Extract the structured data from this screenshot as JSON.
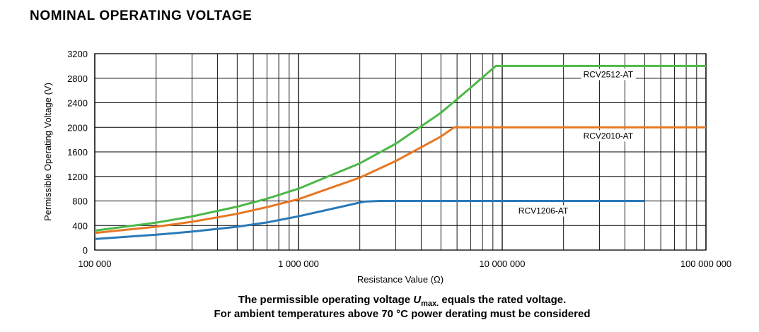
{
  "title": "NOMINAL OPERATING VOLTAGE",
  "caption": {
    "line1_pre": "The permissible operating voltage ",
    "line1_symbol": "U",
    "line1_sub": "max.",
    "line1_post": " equals the rated voltage.",
    "line2": "For ambient temperatures above 70 °C power derating must be considered"
  },
  "colors": {
    "RCV2512-AT": "#4cb848",
    "RCV2010-AT": "#e87722",
    "RCV1206-AT": "#2a7ab8",
    "grid": "#000000"
  },
  "chart_data": {
    "type": "line",
    "title": "NOMINAL OPERATING VOLTAGE",
    "xlabel": "Resistance Value (Ω)",
    "ylabel": "Permissible Operating Voltage (V)",
    "xscale": "log",
    "xlim": [
      100000,
      100000000
    ],
    "ylim": [
      0,
      3200
    ],
    "grid": true,
    "yticks": [
      0,
      400,
      800,
      1200,
      1600,
      2000,
      2400,
      2800,
      3200
    ],
    "ytick_labels": [
      "0",
      "400",
      "800",
      "1200",
      "1600",
      "2000",
      "2400",
      "2800",
      "3200"
    ],
    "xticks": [
      100000,
      1000000,
      10000000,
      100000000
    ],
    "xtick_labels": [
      "100 000",
      "1 000 000",
      "10 000 000",
      "100 000 000"
    ],
    "series": [
      {
        "name": "RCV2512-AT",
        "x": [
          100000,
          200000,
          300000,
          500000,
          700000,
          1000000,
          2000000,
          3000000,
          5000000,
          7000000,
          9300000,
          100000000
        ],
        "y": [
          316,
          447,
          548,
          707,
          837,
          1000,
          1414,
          1732,
          2236,
          2646,
          3000,
          3000
        ]
      },
      {
        "name": "RCV2010-AT",
        "x": [
          100000,
          200000,
          300000,
          500000,
          700000,
          1000000,
          2000000,
          3000000,
          5000000,
          5800000,
          100000000
        ],
        "y": [
          280,
          380,
          460,
          590,
          700,
          830,
          1180,
          1450,
          1850,
          2000,
          2000
        ]
      },
      {
        "name": "RCV1206-AT",
        "x": [
          100000,
          200000,
          300000,
          500000,
          700000,
          1000000,
          1500000,
          2100000,
          2500000,
          50000000
        ],
        "y": [
          180,
          250,
          300,
          380,
          450,
          550,
          680,
          790,
          800,
          800
        ]
      }
    ]
  }
}
